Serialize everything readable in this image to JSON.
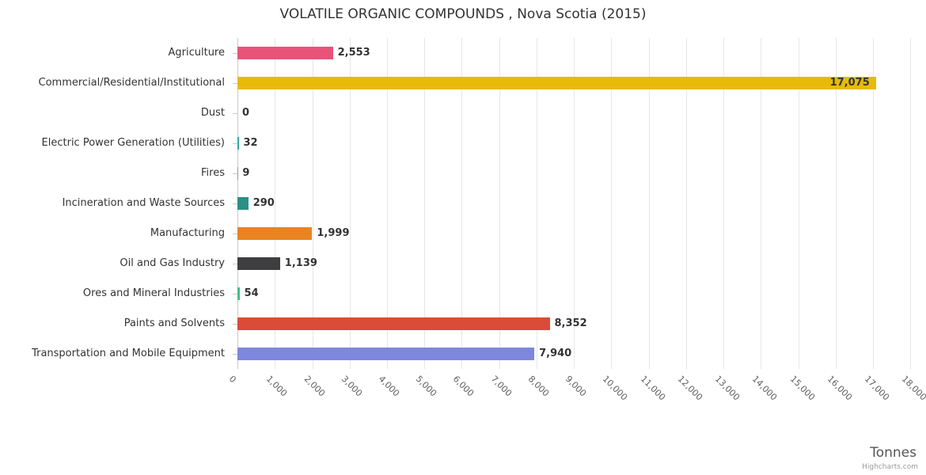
{
  "title": "VOLATILE ORGANIC COMPOUNDS , Nova Scotia (2015)",
  "x_axis_title": "Tonnes",
  "credit": "Highcharts.com",
  "chart_data": {
    "type": "bar",
    "orientation": "horizontal",
    "title": "VOLATILE ORGANIC COMPOUNDS , Nova Scotia (2015)",
    "xlabel": "Tonnes",
    "ylabel": "",
    "grid": true,
    "legend": false,
    "xlim": [
      0,
      18000
    ],
    "axis_max": 18100,
    "tick_interval": 1000,
    "tick_labels": [
      "0",
      "1,000",
      "2,000",
      "3,000",
      "4,000",
      "5,000",
      "6,000",
      "7,000",
      "8,000",
      "9,000",
      "10,000",
      "11,000",
      "12,000",
      "13,000",
      "14,000",
      "15,000",
      "16,000",
      "17,000",
      "18,000"
    ],
    "categories": [
      "Agriculture",
      "Commercial/Residential/Institutional",
      "Dust",
      "Electric Power Generation (Utilities)",
      "Fires",
      "Incineration and Waste Sources",
      "Manufacturing",
      "Oil and Gas Industry",
      "Ores and Mineral Industries",
      "Paints and Solvents",
      "Transportation and Mobile Equipment"
    ],
    "values": [
      2553,
      17075,
      0,
      32,
      9,
      290,
      1999,
      1139,
      54,
      8352,
      7940
    ],
    "value_labels": [
      "2,553",
      "17,075",
      "0",
      "32",
      "9",
      "290",
      "1,999",
      "1,139",
      "54",
      "8,352",
      "7,940"
    ],
    "colors": [
      "#e8537a",
      "#e7ba0a",
      "#b0b0b0",
      "#32a8a2",
      "#9a9a9a",
      "#2a8f85",
      "#e9831f",
      "#3e3e40",
      "#43bd8a",
      "#da4b38",
      "#7d87de"
    ]
  }
}
